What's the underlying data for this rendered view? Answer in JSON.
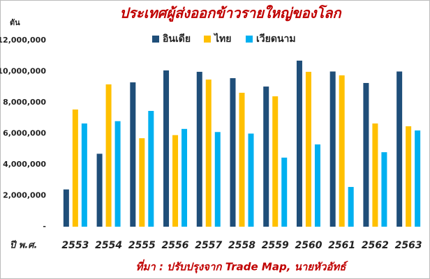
{
  "chart_data": {
    "type": "bar",
    "title": "ประเทศผู้ส่งออกข้าวรายใหญ่ของโลก",
    "y_label": "ตัน",
    "x_label": "ปี พ.ศ.",
    "source": "ที่มา : ปรับปรุงจาก Trade Map, นายหัวอัทธ์",
    "categories": [
      "2553",
      "2554",
      "2555",
      "2556",
      "2557",
      "2558",
      "2559",
      "2560",
      "2561",
      "2562",
      "2563"
    ],
    "series": [
      {
        "name": "อินเดีย",
        "color": "#1f4e79",
        "values": [
          2400000,
          4700000,
          9300000,
          10070000,
          9980000,
          9570000,
          9030000,
          10700000,
          10000000,
          9260000,
          10000000
        ]
      },
      {
        "name": "ไทย",
        "color": "#ffc000",
        "values": [
          7550000,
          9170000,
          5700000,
          5900000,
          9480000,
          8630000,
          8400000,
          9980000,
          9750000,
          6650000,
          6470000
        ]
      },
      {
        "name": "เวียดนาม",
        "color": "#00b0f0",
        "values": [
          6650000,
          6800000,
          7460000,
          6300000,
          6100000,
          6000000,
          4450000,
          5300000,
          2560000,
          4800000,
          6200000
        ]
      }
    ],
    "ylim": [
      0,
      12000000
    ],
    "yticks": [
      {
        "value": 0,
        "label": "-"
      },
      {
        "value": 2000000,
        "label": "2,000,000"
      },
      {
        "value": 4000000,
        "label": "4,000,000"
      },
      {
        "value": 6000000,
        "label": "6,000,000"
      },
      {
        "value": 8000000,
        "label": "8,000,000"
      },
      {
        "value": 10000000,
        "label": "10,000,000"
      },
      {
        "value": 12000000,
        "label": "12,000,000"
      }
    ],
    "grid": false
  }
}
